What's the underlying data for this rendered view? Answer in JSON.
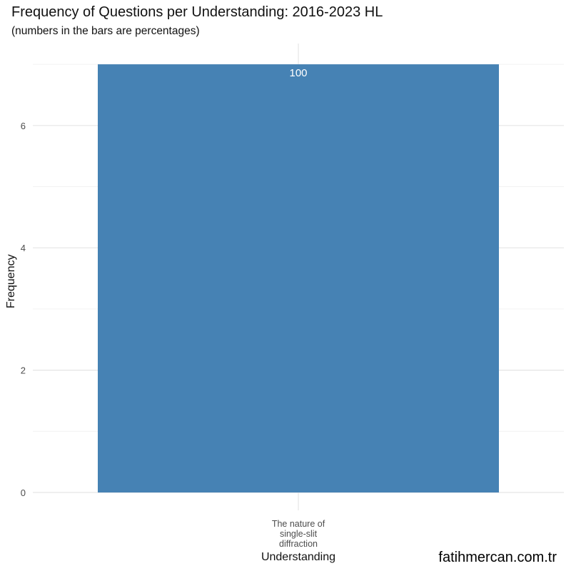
{
  "header": {
    "title": "Frequency of Questions per Understanding: 2016-2023 HL",
    "subtitle": "(numbers in the bars are percentages)"
  },
  "watermark": "fatihmercan.com.tr",
  "chart_data": {
    "type": "bar",
    "title": "Frequency of Questions per Understanding: 2016-2023 HL",
    "subtitle": "(numbers in the bars are percentages)",
    "xlabel": "Understanding",
    "ylabel": "Frequency",
    "categories": [
      "The nature of single-slit diffraction"
    ],
    "category_label_lines": [
      [
        "The nature of",
        "single-slit",
        "diffraction"
      ]
    ],
    "values": [
      7
    ],
    "data_labels": [
      "100"
    ],
    "ylim": [
      0,
      7.35
    ],
    "yticks": [
      0,
      2,
      4,
      6
    ],
    "grid": true,
    "legend": "none",
    "colors": {
      "bar": "#4682B4",
      "bar_label": "#ffffff",
      "grid_major": "#e5e5e5",
      "grid_minor": "#f2f2f2",
      "tick_text": "#4d4d4d"
    }
  }
}
